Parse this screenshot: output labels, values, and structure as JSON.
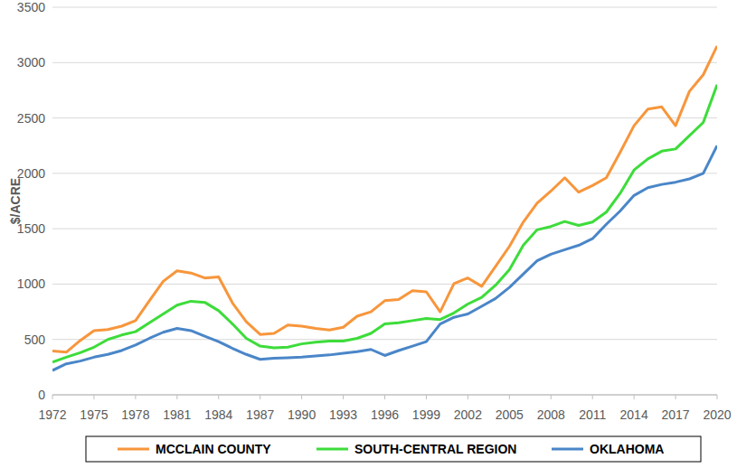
{
  "chart_data": {
    "type": "line",
    "y_label": "$/ACRE",
    "x": [
      1972,
      1973,
      1974,
      1975,
      1976,
      1977,
      1978,
      1979,
      1980,
      1981,
      1982,
      1983,
      1984,
      1985,
      1986,
      1987,
      1988,
      1989,
      1990,
      1991,
      1992,
      1993,
      1994,
      1995,
      1996,
      1997,
      1998,
      1999,
      2000,
      2001,
      2002,
      2003,
      2004,
      2005,
      2006,
      2007,
      2008,
      2009,
      2010,
      2011,
      2012,
      2013,
      2014,
      2015,
      2016,
      2017,
      2018,
      2019,
      2020
    ],
    "series": [
      {
        "name": "MCCLAIN COUNTY",
        "color": "#f7963c",
        "values": [
          395,
          385,
          490,
          580,
          590,
          620,
          670,
          850,
          1025,
          1120,
          1100,
          1055,
          1065,
          830,
          660,
          545,
          555,
          630,
          620,
          600,
          585,
          610,
          710,
          750,
          850,
          860,
          940,
          930,
          750,
          1005,
          1055,
          980,
          1160,
          1340,
          1560,
          1730,
          1840,
          1960,
          1830,
          1890,
          1960,
          2190,
          2430,
          2580,
          2600,
          2430,
          2740,
          2890,
          3150
        ]
      },
      {
        "name": "SOUTH-CENTRAL REGION",
        "color": "#3ddc3a",
        "values": [
          295,
          340,
          380,
          430,
          500,
          540,
          570,
          650,
          730,
          810,
          845,
          835,
          760,
          640,
          510,
          440,
          425,
          430,
          460,
          475,
          485,
          485,
          510,
          555,
          640,
          650,
          670,
          690,
          680,
          740,
          820,
          880,
          990,
          1130,
          1350,
          1490,
          1520,
          1565,
          1530,
          1560,
          1650,
          1820,
          2030,
          2130,
          2200,
          2220,
          2340,
          2460,
          2800
        ]
      },
      {
        "name": "OKLAHOMA",
        "color": "#4a86c8",
        "values": [
          220,
          280,
          305,
          340,
          365,
          400,
          450,
          510,
          565,
          600,
          580,
          530,
          480,
          420,
          365,
          320,
          330,
          335,
          340,
          350,
          360,
          375,
          390,
          410,
          355,
          400,
          440,
          480,
          640,
          700,
          730,
          800,
          870,
          970,
          1090,
          1210,
          1270,
          1310,
          1350,
          1410,
          1540,
          1660,
          1800,
          1870,
          1900,
          1920,
          1950,
          2000,
          2250
        ]
      }
    ],
    "xlim": [
      1972,
      2020
    ],
    "xticks": [
      1972,
      1975,
      1978,
      1981,
      1984,
      1987,
      1990,
      1993,
      1996,
      1999,
      2002,
      2005,
      2008,
      2011,
      2014,
      2017,
      2020
    ],
    "ylim": [
      0,
      3500
    ],
    "yticks": [
      0,
      500,
      1000,
      1500,
      2000,
      2500,
      3000,
      3500
    ],
    "grid": true,
    "legend": "bottom"
  }
}
